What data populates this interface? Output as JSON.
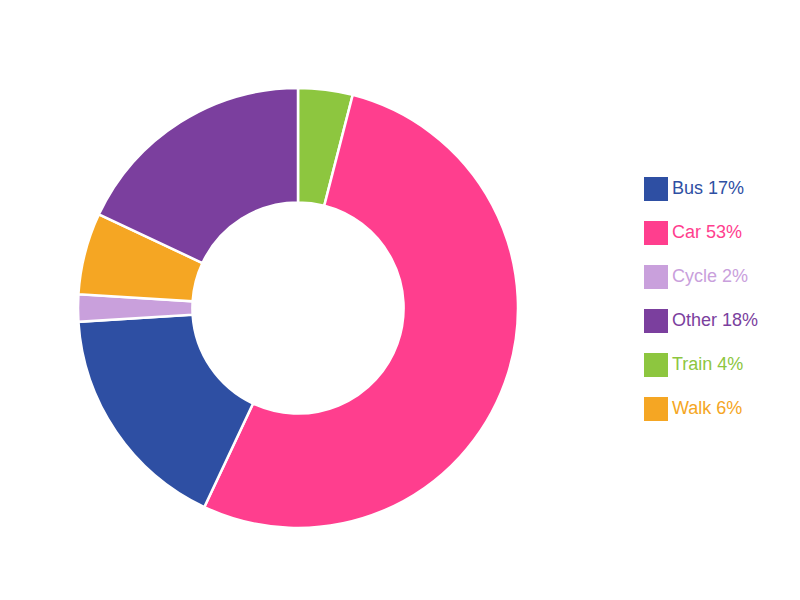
{
  "chart_data": {
    "type": "pie",
    "categories": [
      "Train 4%",
      "Car 53%",
      "Bus 17%",
      "Cycle 2%",
      "Walk 6%",
      "Other 18%"
    ],
    "values": [
      4,
      53,
      17,
      2,
      6,
      18
    ],
    "colors": [
      "#8DC63F",
      "#FF3E8E",
      "#2E4FA3",
      "#C9A0DC",
      "#F5A623",
      "#7B3F9E"
    ],
    "legend": "right"
  }
}
